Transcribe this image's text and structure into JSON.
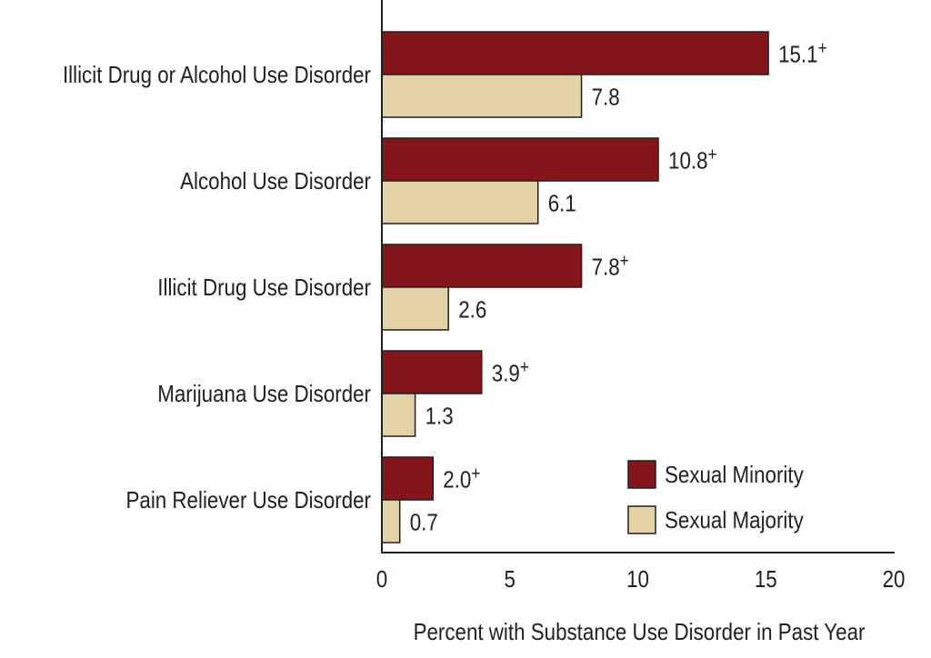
{
  "chart_data": {
    "type": "bar",
    "orientation": "horizontal",
    "categories": [
      "Illicit Drug or Alcohol Use Disorder",
      "Alcohol Use Disorder",
      "Illicit Drug Use Disorder",
      "Marijuana Use Disorder",
      "Pain Reliever Use Disorder"
    ],
    "series": [
      {
        "name": "Sexual Minority",
        "color": "#84161b",
        "values": [
          15.1,
          10.8,
          7.8,
          3.9,
          2.0
        ],
        "labels": [
          "15.1",
          "10.8",
          "7.8",
          "3.9",
          "2.0"
        ],
        "marker": "+"
      },
      {
        "name": "Sexual Majority",
        "color": "#e2d2a6",
        "values": [
          7.8,
          6.1,
          2.6,
          1.3,
          0.7
        ],
        "labels": [
          "7.8",
          "6.1",
          "2.6",
          "1.3",
          "0.7"
        ],
        "marker": ""
      }
    ],
    "xlabel": "Percent with Substance Use Disorder in Past Year",
    "ylabel": "",
    "title": "",
    "xlim": [
      0,
      20
    ],
    "xticks": [
      "0",
      "5",
      "10",
      "15",
      "20"
    ],
    "grid": false,
    "legend_position": "bottom-right"
  }
}
